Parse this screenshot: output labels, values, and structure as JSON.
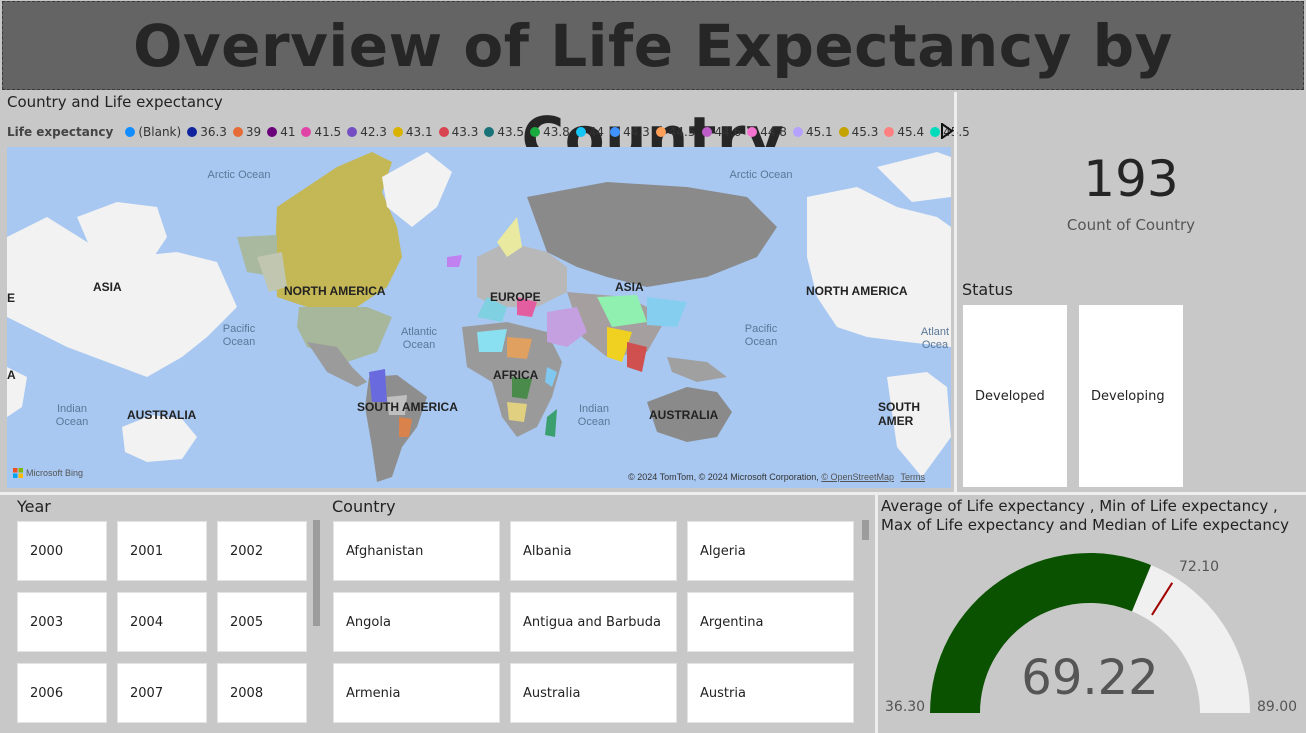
{
  "title": "Overview of Life Expectancy by Country",
  "map": {
    "title": "Country and Life expectancy",
    "legend_label": "Life expectancy",
    "legend_items": [
      {
        "label": "(Blank)",
        "color": "#118dff"
      },
      {
        "label": "36.3",
        "color": "#12239e"
      },
      {
        "label": "39",
        "color": "#e66c37"
      },
      {
        "label": "41",
        "color": "#6b007b"
      },
      {
        "label": "41.5",
        "color": "#e044a7"
      },
      {
        "label": "42.3",
        "color": "#744ec2"
      },
      {
        "label": "43.1",
        "color": "#d9b300"
      },
      {
        "label": "43.3",
        "color": "#d64550"
      },
      {
        "label": "43.5",
        "color": "#197278"
      },
      {
        "label": "43.8",
        "color": "#1aab40"
      },
      {
        "label": "44",
        "color": "#15c6f4"
      },
      {
        "label": "44.3",
        "color": "#4092ff"
      },
      {
        "label": "44.5",
        "color": "#ffa058"
      },
      {
        "label": "44.6",
        "color": "#be5dc9"
      },
      {
        "label": "44.8",
        "color": "#f472d0"
      },
      {
        "label": "45.1",
        "color": "#b5a1ff"
      },
      {
        "label": "45.3",
        "color": "#c4a200"
      },
      {
        "label": "45.4",
        "color": "#ff8080"
      },
      {
        "label": "45.5",
        "color": "#00dbbc"
      }
    ],
    "labels": {
      "arctic_ocean": "Arctic Ocean",
      "pacific_ocean": "Pacific Ocean",
      "atlantic_ocean": "Atlantic Ocean",
      "indian_ocean": "Indian Ocean",
      "atlant_cut": "Atlant Ocea",
      "asia": "ASIA",
      "north_america": "NORTH AMERICA",
      "europe": "EUROPE",
      "africa": "AFRICA",
      "south_america": "SOUTH AMERICA",
      "south_amer_cut": "SOUTH AMER",
      "australia": "AUSTRALIA",
      "edge_e": "E",
      "edge_a": "A"
    },
    "bing": "Microsoft Bing",
    "copyright": "© 2024 TomTom, © 2024 Microsoft Corporation,",
    "osm": "© OpenStreetMap",
    "terms": "Terms"
  },
  "kpi": {
    "value": "193",
    "label": "Count of Country"
  },
  "status": {
    "title": "Status",
    "options": [
      "Developed",
      "Developing"
    ]
  },
  "year_slicer": {
    "title": "Year",
    "items": [
      "2000",
      "2001",
      "2002",
      "2003",
      "2004",
      "2005",
      "2006",
      "2007",
      "2008"
    ]
  },
  "country_slicer": {
    "title": "Country",
    "items": [
      "Afghanistan",
      "Albania",
      "Algeria",
      "Angola",
      "Antigua and Barbuda",
      "Argentina",
      "Armenia",
      "Australia",
      "Austria"
    ]
  },
  "gauge": {
    "title": "Average of Life expectancy , Min of Life expectancy , Max of Life expectancy and Median of Life expectancy",
    "value": 69.22,
    "value_text": "69.22",
    "min": 36.3,
    "min_text": "36.30",
    "max": 89.0,
    "max_text": "89.00",
    "target": 72.1,
    "target_text": "72.10",
    "fill_color": "#0b5200",
    "track_color": "#f0f0f0",
    "target_color": "#a00000"
  }
}
